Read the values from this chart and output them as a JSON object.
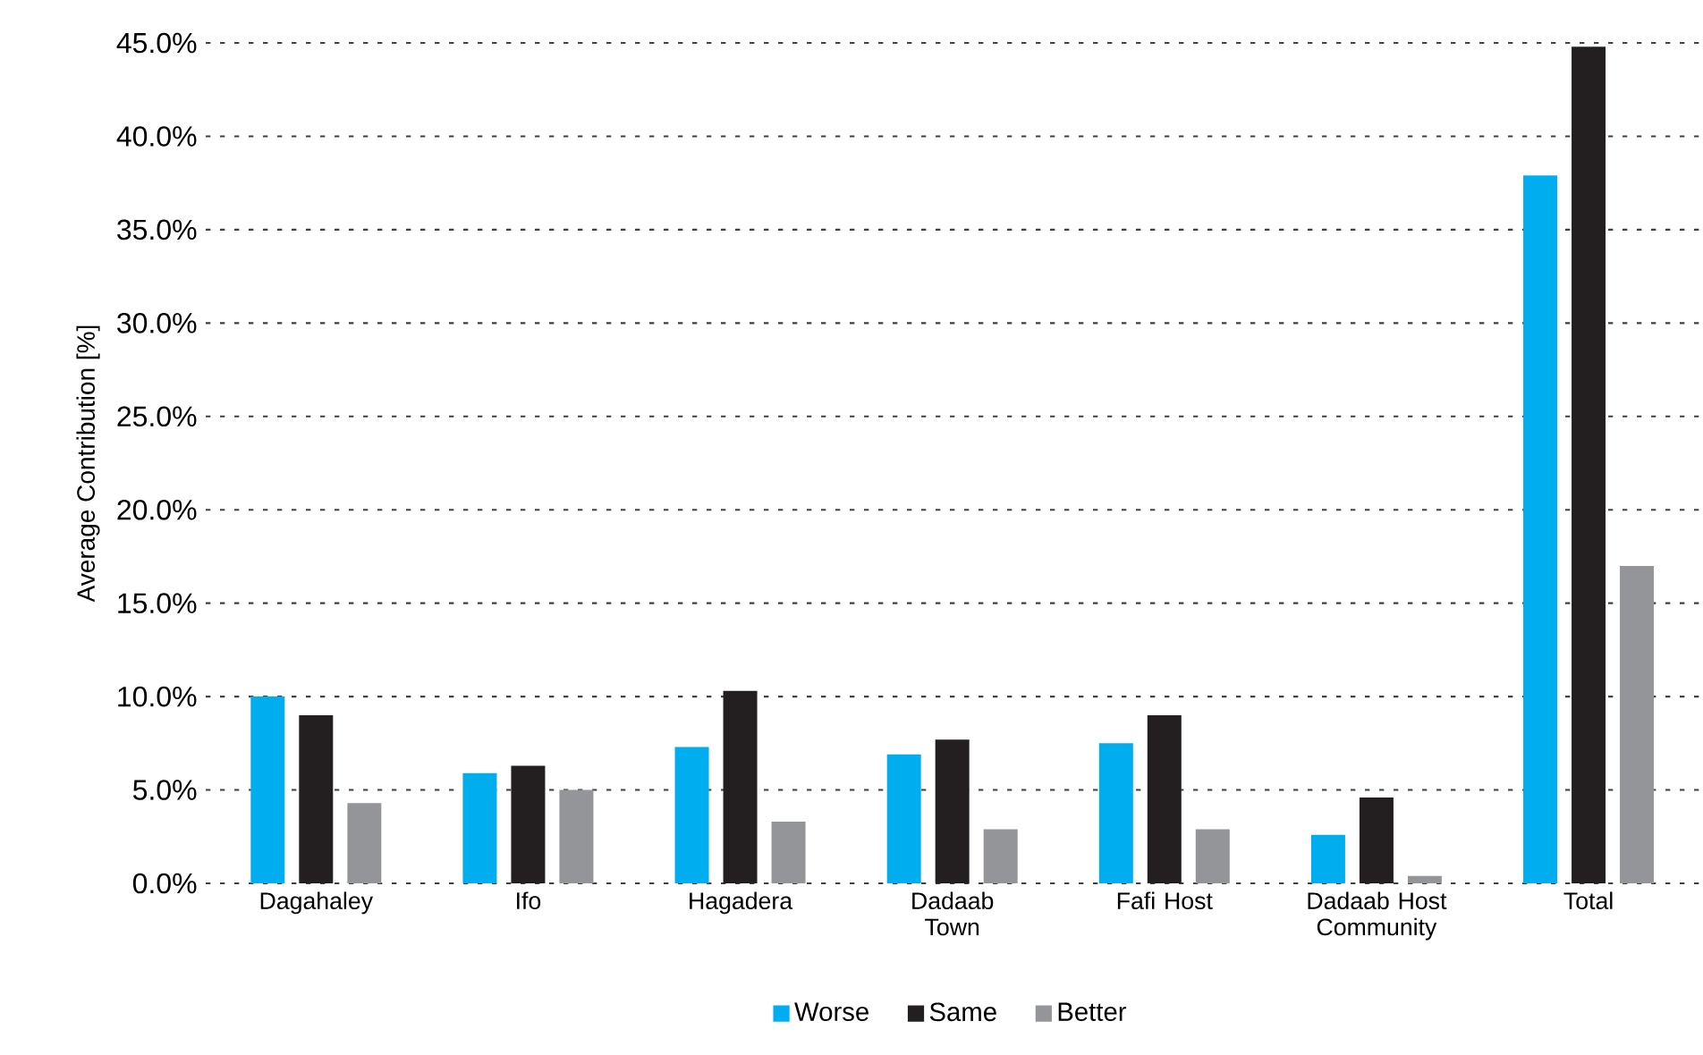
{
  "chart_data": {
    "type": "bar",
    "ylabel": "Average Contribution [%]",
    "categories": [
      "Dagahaley",
      "Ifo",
      "Hagadera",
      "Dadaab Town",
      "Fafi Host",
      "Dadaab Host Community",
      "Total"
    ],
    "series": [
      {
        "name": "Worse",
        "color": "#00aeef",
        "values": [
          10.0,
          5.9,
          7.3,
          6.9,
          7.5,
          2.6,
          37.9
        ]
      },
      {
        "name": "Same",
        "color": "#231f20",
        "values": [
          9.0,
          6.3,
          10.3,
          7.7,
          9.0,
          4.6,
          44.8
        ]
      },
      {
        "name": "Better",
        "color": "#939598",
        "values": [
          4.3,
          5.0,
          3.3,
          2.9,
          2.9,
          0.4,
          17.0
        ]
      }
    ],
    "ylim": [
      0,
      45
    ],
    "yticks": [
      {
        "value": 0,
        "label": "0.0%"
      },
      {
        "value": 5,
        "label": "5.0%"
      },
      {
        "value": 10,
        "label": "10.0%"
      },
      {
        "value": 15,
        "label": "15.0%"
      },
      {
        "value": 20,
        "label": "20.0%"
      },
      {
        "value": 25,
        "label": "25.0%"
      },
      {
        "value": 30,
        "label": "30.0%"
      },
      {
        "value": 35,
        "label": "35.0%"
      },
      {
        "value": 40,
        "label": "40.0%"
      },
      {
        "value": 45,
        "label": "45.0%"
      }
    ],
    "grid": "y",
    "legend": "bottom"
  }
}
